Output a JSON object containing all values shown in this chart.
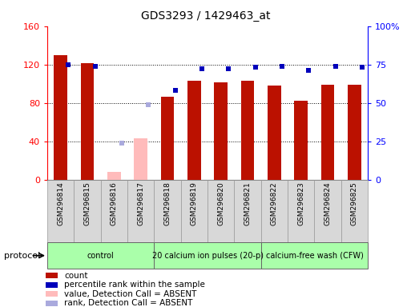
{
  "title": "GDS3293 / 1429463_at",
  "samples": [
    "GSM296814",
    "GSM296815",
    "GSM296816",
    "GSM296817",
    "GSM296818",
    "GSM296819",
    "GSM296820",
    "GSM296821",
    "GSM296822",
    "GSM296823",
    "GSM296824",
    "GSM296825"
  ],
  "count_values": [
    130,
    121,
    null,
    null,
    86,
    103,
    101,
    103,
    98,
    82,
    99,
    99
  ],
  "count_absent_values": [
    null,
    null,
    8,
    43,
    null,
    null,
    null,
    null,
    null,
    null,
    null,
    null
  ],
  "percentile_values": [
    75,
    74,
    null,
    null,
    58,
    72,
    72,
    73,
    74,
    71,
    74,
    73
  ],
  "percentile_absent_values": [
    null,
    null,
    24,
    49,
    null,
    null,
    null,
    null,
    null,
    null,
    null,
    null
  ],
  "count_color": "#bb1100",
  "count_absent_color": "#ffbbbb",
  "percentile_color": "#0000bb",
  "percentile_absent_color": "#aaaadd",
  "ylim_left": [
    0,
    160
  ],
  "ylim_right": [
    0,
    100
  ],
  "yticks_left": [
    0,
    40,
    80,
    120,
    160
  ],
  "yticks_right": [
    0,
    25,
    50,
    75,
    100
  ],
  "yticklabels_right": [
    "0",
    "25",
    "50",
    "75",
    "100%"
  ],
  "grid_values": [
    40,
    80,
    120
  ],
  "protocol_groups": [
    {
      "label": "control",
      "start": 0,
      "end": 3
    },
    {
      "label": "20 calcium ion pulses (20-p)",
      "start": 4,
      "end": 7
    },
    {
      "label": "calcium-free wash (CFW)",
      "start": 8,
      "end": 11
    }
  ],
  "legend_items": [
    {
      "label": "count",
      "color": "#bb1100"
    },
    {
      "label": "percentile rank within the sample",
      "color": "#0000bb"
    },
    {
      "label": "value, Detection Call = ABSENT",
      "color": "#ffbbbb"
    },
    {
      "label": "rank, Detection Call = ABSENT",
      "color": "#aaaadd"
    }
  ],
  "bar_width": 0.5,
  "background_color": "#ffffff",
  "protocol_label": "protocol",
  "protocol_color": "#aaffaa",
  "xlabel_bg": "#d8d8d8"
}
